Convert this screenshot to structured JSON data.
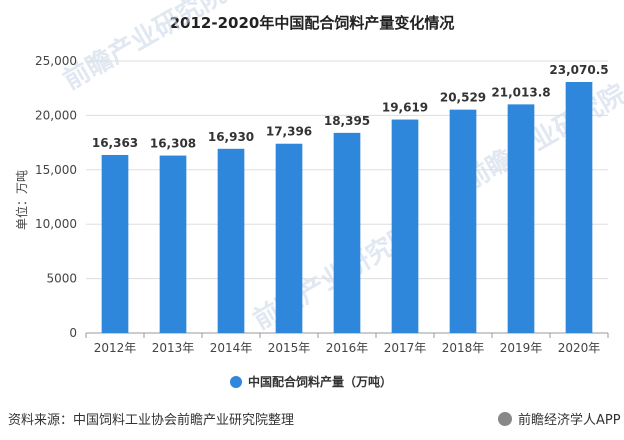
{
  "source_text": "资料来源：中国饲料工业协会前瞻产业研究院整理",
  "brand_text": "前瞻经济学人APP",
  "watermark_text": "前瞻产业研究院",
  "colors": {
    "bar": "#2f87db",
    "grid": "#dddddd",
    "axis": "#999999"
  },
  "chart_data": {
    "type": "bar",
    "title": "2012-2020年中国配合饲料产量变化情况",
    "ylabel": "单位：万吨",
    "xlabel": "",
    "categories": [
      "2012年",
      "2013年",
      "2014年",
      "2015年",
      "2016年",
      "2017年",
      "2018年",
      "2019年",
      "2020年"
    ],
    "series": [
      {
        "name": "中国配合饲料产量（万吨）",
        "values": [
          16363,
          16308,
          16930,
          17396,
          18395,
          19619,
          20529,
          21013.8,
          23070.5
        ],
        "labels": [
          "16,363",
          "16,308",
          "16,930",
          "17,396",
          "18,395",
          "19,619",
          "20,529",
          "21,013.8",
          "23,070.5"
        ]
      }
    ],
    "ylim": [
      0,
      25000
    ],
    "yticks": [
      0,
      5000,
      10000,
      15000,
      20000,
      25000
    ],
    "ytick_labels": [
      "0",
      "5000",
      "10,000",
      "15,000",
      "20,000",
      "25,000"
    ],
    "grid": true,
    "legend_position": "bottom"
  }
}
